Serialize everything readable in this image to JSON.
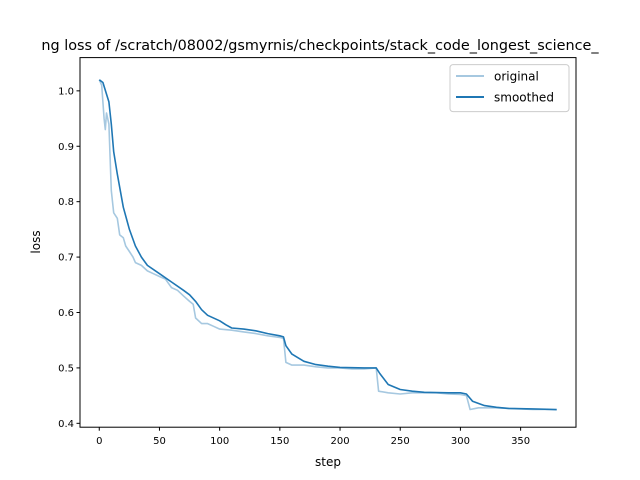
{
  "chart_data": {
    "type": "line",
    "title": "ng loss of /scratch/08002/gsmyrnis/checkpoints/stack_code_longest_science_",
    "xlabel": "step",
    "ylabel": "loss",
    "xlim": [
      -16,
      396
    ],
    "ylim": [
      0.393,
      1.06
    ],
    "xticks": [
      0,
      50,
      100,
      150,
      200,
      250,
      300,
      350
    ],
    "yticks": [
      0.4,
      0.5,
      0.6,
      0.7,
      0.8,
      0.9,
      1.0
    ],
    "grid": false,
    "legend_position": "top-right",
    "series": [
      {
        "name": "original",
        "color": "#a6c8e0",
        "x": [
          0,
          2,
          4,
          5,
          6,
          8,
          10,
          12,
          15,
          17,
          20,
          22,
          25,
          28,
          30,
          35,
          40,
          45,
          50,
          55,
          60,
          65,
          70,
          75,
          78,
          80,
          85,
          90,
          95,
          100,
          110,
          120,
          130,
          140,
          150,
          153,
          155,
          160,
          170,
          180,
          190,
          200,
          210,
          220,
          230,
          232,
          240,
          250,
          260,
          270,
          280,
          290,
          300,
          305,
          308,
          315,
          320,
          330,
          340,
          350,
          360,
          370,
          380
        ],
        "y": [
          1.02,
          1.01,
          0.95,
          0.93,
          0.96,
          0.94,
          0.82,
          0.78,
          0.77,
          0.74,
          0.735,
          0.72,
          0.71,
          0.7,
          0.69,
          0.685,
          0.675,
          0.67,
          0.665,
          0.66,
          0.645,
          0.64,
          0.63,
          0.62,
          0.615,
          0.59,
          0.58,
          0.58,
          0.575,
          0.57,
          0.568,
          0.565,
          0.562,
          0.558,
          0.555,
          0.553,
          0.51,
          0.505,
          0.505,
          0.502,
          0.5,
          0.5,
          0.498,
          0.498,
          0.5,
          0.458,
          0.455,
          0.453,
          0.455,
          0.455,
          0.455,
          0.453,
          0.452,
          0.45,
          0.425,
          0.428,
          0.428,
          0.428,
          0.427,
          0.426,
          0.425,
          0.425,
          0.424
        ]
      },
      {
        "name": "smoothed",
        "color": "#1f77b4",
        "x": [
          0,
          3,
          8,
          10,
          12,
          15,
          20,
          25,
          30,
          35,
          40,
          50,
          60,
          70,
          75,
          80,
          85,
          90,
          100,
          105,
          110,
          120,
          130,
          140,
          150,
          153,
          155,
          160,
          170,
          180,
          190,
          200,
          220,
          230,
          233,
          240,
          250,
          260,
          270,
          290,
          300,
          305,
          310,
          320,
          330,
          340,
          360,
          380
        ],
        "y": [
          1.02,
          1.015,
          0.98,
          0.94,
          0.89,
          0.85,
          0.79,
          0.75,
          0.72,
          0.7,
          0.685,
          0.67,
          0.655,
          0.64,
          0.632,
          0.62,
          0.605,
          0.595,
          0.585,
          0.578,
          0.572,
          0.57,
          0.567,
          0.562,
          0.558,
          0.556,
          0.54,
          0.525,
          0.512,
          0.506,
          0.503,
          0.501,
          0.5,
          0.5,
          0.49,
          0.47,
          0.461,
          0.458,
          0.456,
          0.455,
          0.455,
          0.453,
          0.44,
          0.432,
          0.429,
          0.427,
          0.426,
          0.425
        ]
      }
    ]
  }
}
